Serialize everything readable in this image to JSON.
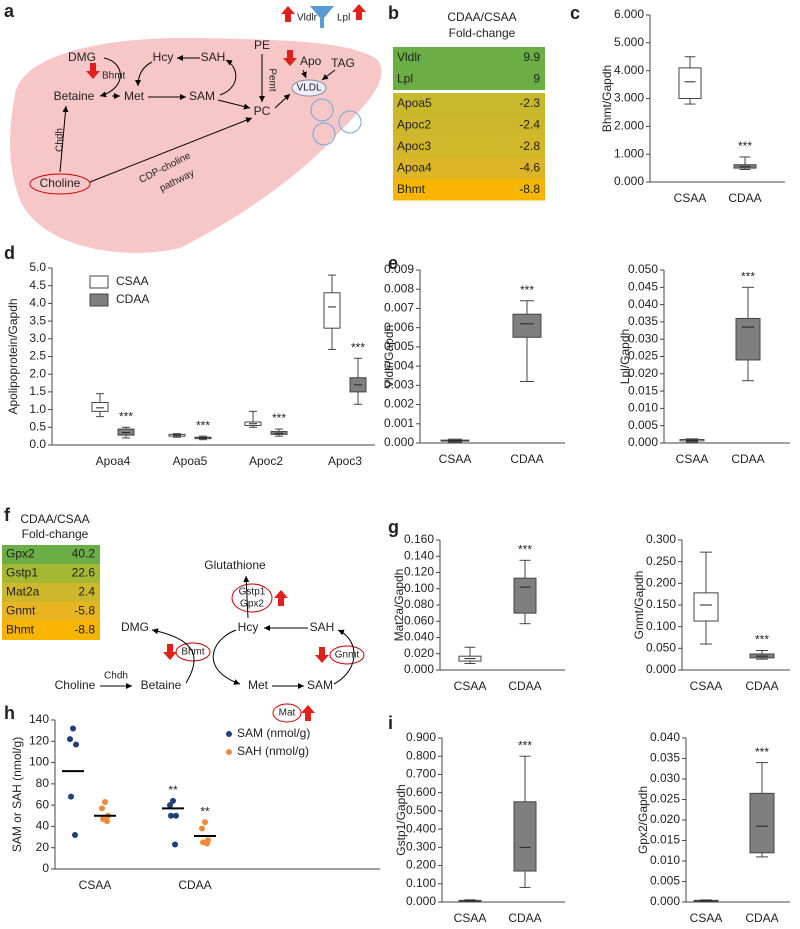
{
  "panel_labels": [
    "a",
    "b",
    "c",
    "d",
    "e",
    "f",
    "g",
    "h",
    "i"
  ],
  "diagram_a": {
    "dmg": "DMG",
    "bhmt": "Bhmt",
    "betaine": "Betaine",
    "hcy": "Hcy",
    "sah": "SAH",
    "pe": "PE",
    "pemt": "Pemt",
    "met": "Met",
    "sam": "SAM",
    "pc": "PC",
    "apo": "Apo",
    "tag": "TAG",
    "vldl": "VLDL",
    "vldlr": "Vldlr",
    "lpl": "Lpl",
    "chdh": "Chdh",
    "cdp1": "CDP-choline",
    "cdp2": "pathway",
    "choline": "Choline"
  },
  "table_b": {
    "header": [
      "CDAA/CSAA",
      "Fold-change"
    ],
    "rows": [
      {
        "gene": "Vldlr",
        "value": 9.9,
        "color": "#6aae45"
      },
      {
        "gene": "Lpl",
        "value": 9,
        "color": "#6aae45"
      },
      {
        "gene": "Apoa5",
        "value": -2.3,
        "color": "#c8b92c"
      },
      {
        "gene": "Apoc2",
        "value": -2.4,
        "color": "#cdb82b"
      },
      {
        "gene": "Apoc3",
        "value": -2.8,
        "color": "#d2b72a"
      },
      {
        "gene": "Apoa4",
        "value": -4.6,
        "color": "#dcb626"
      },
      {
        "gene": "Bhmt",
        "value": -8.8,
        "color": "#f7b500"
      }
    ]
  },
  "table_f": {
    "header": [
      "CDAA/CSAA",
      "Fold-change"
    ],
    "rows": [
      {
        "gene": "Gpx2",
        "value": 40.2,
        "color": "#6aae45"
      },
      {
        "gene": "Gstp1",
        "value": 22.6,
        "color": "#a4b834"
      },
      {
        "gene": "Mat2a",
        "value": 2.4,
        "color": "#cdb82b"
      },
      {
        "gene": "Gnmt",
        "value": -5.8,
        "color": "#e8b520"
      },
      {
        "gene": "Bhmt",
        "value": -8.8,
        "color": "#f7b500"
      }
    ]
  },
  "diagram_f": {
    "glutathione": "Glutathione",
    "gstp1": "Gstp1",
    "gpx2": "Gpx2",
    "dmg": "DMG",
    "hcy": "Hcy",
    "sah": "SAH",
    "bhmt": "Bhmt",
    "gnmt": "Gnmt",
    "choline": "Choline",
    "chdh": "Chdh",
    "betaine": "Betaine",
    "met": "Met",
    "sam": "SAM",
    "mat": "Mat"
  },
  "chart_data": [
    {
      "type": "box",
      "ylabel": "Bhmt/Gapdh",
      "categories": [
        "CSAA",
        "CDAA"
      ],
      "colors": [
        "#ffffff",
        "#7f7f7f"
      ],
      "min": [
        2.8,
        0.45
      ],
      "q1": [
        3.0,
        0.5
      ],
      "median": [
        3.6,
        0.55
      ],
      "q3": [
        4.1,
        0.62
      ],
      "max": [
        4.5,
        0.9
      ],
      "annotations": [
        null,
        "***"
      ],
      "ylim": [
        0,
        6
      ],
      "yticks": [
        {
          "value": 0,
          "label": "0.000"
        },
        {
          "value": 1,
          "label": "1.000"
        },
        {
          "value": 2,
          "label": "2.000"
        },
        {
          "value": 3,
          "label": "3.000"
        },
        {
          "value": 4,
          "label": "4.000"
        },
        {
          "value": 5,
          "label": "5.000"
        },
        {
          "value": 6,
          "label": "6.000"
        }
      ]
    },
    {
      "type": "box",
      "ylabel": "Apolipoprotein/Gapdh",
      "categories": [
        "Apoa4",
        "Apoa5",
        "Apoc2",
        "Apoc3"
      ],
      "legend": "upper left",
      "series": [
        {
          "name": "CSAA",
          "color": "#ffffff",
          "min": [
            0.8,
            0.22,
            0.5,
            2.7
          ],
          "q1": [
            0.95,
            0.25,
            0.55,
            3.3
          ],
          "median": [
            1.05,
            0.28,
            0.6,
            3.9
          ],
          "q3": [
            1.2,
            0.3,
            0.65,
            4.3
          ],
          "max": [
            1.45,
            0.32,
            0.95,
            4.8
          ]
        },
        {
          "name": "CDAA",
          "color": "#7f7f7f",
          "min": [
            0.2,
            0.15,
            0.25,
            1.15
          ],
          "q1": [
            0.28,
            0.18,
            0.3,
            1.5
          ],
          "median": [
            0.35,
            0.2,
            0.33,
            1.7
          ],
          "q3": [
            0.45,
            0.22,
            0.38,
            1.9
          ],
          "max": [
            0.5,
            0.25,
            0.45,
            2.45
          ],
          "annotations": [
            "***",
            "***",
            "***",
            "***"
          ]
        }
      ],
      "ylim": [
        0,
        5
      ],
      "yticks": [
        {
          "value": 0,
          "label": "0.0"
        },
        0.5,
        {
          "value": 1,
          "label": "1.0"
        },
        1.5,
        {
          "value": 2,
          "label": "2.0"
        },
        2.5,
        {
          "value": 3,
          "label": "3.0"
        },
        3.5,
        {
          "value": 4,
          "label": "4.0"
        },
        4.5,
        {
          "value": 5,
          "label": "5.0"
        }
      ]
    },
    {
      "type": "box",
      "ylabel": "Vldlr/Gapdh",
      "categories": [
        "CSAA",
        "CDAA"
      ],
      "colors": [
        "#ffffff",
        "#7f7f7f"
      ],
      "min": [
        5e-05,
        0.0032
      ],
      "q1": [
        0.0001,
        0.0055
      ],
      "median": [
        0.00012,
        0.0062
      ],
      "q3": [
        0.00015,
        0.0067
      ],
      "max": [
        0.0002,
        0.0074
      ],
      "annotations": [
        null,
        "***"
      ],
      "ylim": [
        0,
        0.009
      ],
      "yticks": [
        {
          "value": 0,
          "label": "0.000"
        },
        0.001,
        0.002,
        0.003,
        0.004,
        0.005,
        0.006,
        0.007,
        0.008,
        0.009
      ]
    },
    {
      "type": "box",
      "ylabel": "Lpl/Gapdh",
      "categories": [
        "CSAA",
        "CDAA"
      ],
      "colors": [
        "#ffffff",
        "#7f7f7f"
      ],
      "min": [
        0.0003,
        0.018
      ],
      "q1": [
        0.0006,
        0.024
      ],
      "median": [
        0.0008,
        0.0335
      ],
      "q3": [
        0.001,
        0.036
      ],
      "max": [
        0.0012,
        0.045
      ],
      "annotations": [
        null,
        "***"
      ],
      "ylim": [
        0,
        0.05
      ],
      "yticks": [
        {
          "value": 0,
          "label": "0.000"
        },
        0.005,
        {
          "value": 0.01,
          "label": "0.010"
        },
        0.015,
        {
          "value": 0.02,
          "label": "0.020"
        },
        0.025,
        {
          "value": 0.03,
          "label": "0.030"
        },
        0.035,
        {
          "value": 0.04,
          "label": "0.040"
        },
        0.045,
        {
          "value": 0.05,
          "label": "0.050"
        }
      ]
    },
    {
      "type": "box",
      "ylabel": "Mat2a/Gapdh",
      "categories": [
        "CSAA",
        "CDAA"
      ],
      "colors": [
        "#ffffff",
        "#7f7f7f"
      ],
      "min": [
        0.008,
        0.057
      ],
      "q1": [
        0.011,
        0.07
      ],
      "median": [
        0.014,
        0.102
      ],
      "q3": [
        0.017,
        0.113
      ],
      "max": [
        0.028,
        0.135
      ],
      "annotations": [
        null,
        "***"
      ],
      "ylim": [
        0,
        0.16
      ],
      "yticks": [
        {
          "value": 0,
          "label": "0.000"
        },
        {
          "value": 0.02,
          "label": "0.020"
        },
        {
          "value": 0.04,
          "label": "0.040"
        },
        {
          "value": 0.06,
          "label": "0.060"
        },
        {
          "value": 0.08,
          "label": "0.080"
        },
        {
          "value": 0.1,
          "label": "0.100"
        },
        {
          "value": 0.12,
          "label": "0.120"
        },
        {
          "value": 0.14,
          "label": "0.140"
        },
        {
          "value": 0.16,
          "label": "0.160"
        }
      ]
    },
    {
      "type": "box",
      "ylabel": "Gnmt/Gapdh",
      "categories": [
        "CSAA",
        "CDAA"
      ],
      "colors": [
        "#ffffff",
        "#7f7f7f"
      ],
      "min": [
        0.06,
        0.025
      ],
      "q1": [
        0.113,
        0.028
      ],
      "median": [
        0.15,
        0.032
      ],
      "q3": [
        0.178,
        0.037
      ],
      "max": [
        0.272,
        0.045
      ],
      "annotations": [
        null,
        "***"
      ],
      "ylim": [
        0,
        0.3
      ],
      "yticks": [
        {
          "value": 0,
          "label": "0.000"
        },
        {
          "value": 0.05,
          "label": "0.050"
        },
        {
          "value": 0.1,
          "label": "0.100"
        },
        {
          "value": 0.15,
          "label": "0.150"
        },
        {
          "value": 0.2,
          "label": "0.200"
        },
        {
          "value": 0.25,
          "label": "0.250"
        },
        {
          "value": 0.3,
          "label": "0.300"
        }
      ]
    },
    {
      "type": "dot",
      "ylabel": "SAM or SAH (nmol/g)",
      "categories": [
        "CSAA",
        "CDAA"
      ],
      "legend": "upper right",
      "series": [
        {
          "name": "SAM (nmol/g)",
          "color": "#1f3e7a",
          "values": [
            [
              132,
              122,
              117,
              68,
              32
            ],
            [
              64,
              60,
              50,
              50,
              23
            ]
          ],
          "means": [
            92,
            57
          ],
          "annotations": [
            null,
            "**"
          ]
        },
        {
          "name": "SAH (nmol/g)",
          "color": "#ed8b3a",
          "values": [
            [
              63,
              57,
              50,
              47,
              45
            ],
            [
              44,
              38,
              27,
              25,
              24
            ]
          ],
          "means": [
            50,
            31
          ],
          "annotations": [
            null,
            "**"
          ]
        }
      ],
      "ylim": [
        0,
        140
      ],
      "yticks": [
        0,
        20,
        40,
        60,
        80,
        100,
        120,
        140
      ]
    },
    {
      "type": "box",
      "ylabel": "Gstp1/Gapdh",
      "categories": [
        "CSAA",
        "CDAA"
      ],
      "colors": [
        "#ffffff",
        "#7f7f7f"
      ],
      "min": [
        0.003,
        0.08
      ],
      "q1": [
        0.005,
        0.17
      ],
      "median": [
        0.007,
        0.3
      ],
      "q3": [
        0.009,
        0.55
      ],
      "max": [
        0.012,
        0.8
      ],
      "annotations": [
        null,
        "***"
      ],
      "ylim": [
        0,
        0.9
      ],
      "yticks": [
        {
          "value": 0,
          "label": "0.000"
        },
        {
          "value": 0.1,
          "label": "0.100"
        },
        {
          "value": 0.2,
          "label": "0.200"
        },
        {
          "value": 0.3,
          "label": "0.300"
        },
        {
          "value": 0.4,
          "label": "0.400"
        },
        {
          "value": 0.5,
          "label": "0.500"
        },
        {
          "value": 0.6,
          "label": "0.600"
        },
        {
          "value": 0.7,
          "label": "0.700"
        },
        {
          "value": 0.8,
          "label": "0.800"
        },
        {
          "value": 0.9,
          "label": "0.900"
        }
      ]
    },
    {
      "type": "box",
      "ylabel": "Gpx2/Gapdh",
      "categories": [
        "CSAA",
        "CDAA"
      ],
      "colors": [
        "#ffffff",
        "#7f7f7f"
      ],
      "min": [
        0.0001,
        0.011
      ],
      "q1": [
        0.0002,
        0.012
      ],
      "median": [
        0.0003,
        0.0185
      ],
      "q3": [
        0.0004,
        0.0265
      ],
      "max": [
        0.0005,
        0.034
      ],
      "annotations": [
        null,
        "***"
      ],
      "ylim": [
        0,
        0.04
      ],
      "yticks": [
        {
          "value": 0,
          "label": "0.000"
        },
        0.005,
        {
          "value": 0.01,
          "label": "0.010"
        },
        0.015,
        {
          "value": 0.02,
          "label": "0.020"
        },
        0.025,
        {
          "value": 0.03,
          "label": "0.030"
        },
        0.035,
        {
          "value": 0.04,
          "label": "0.040"
        }
      ]
    }
  ]
}
